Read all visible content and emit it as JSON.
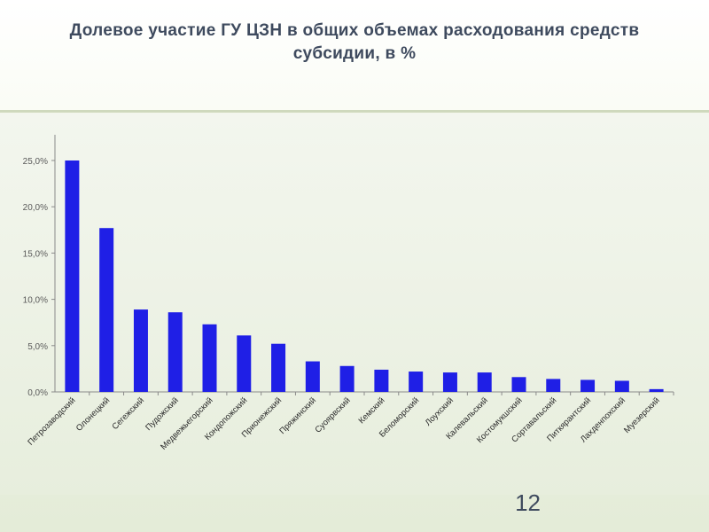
{
  "slide": {
    "title": "Долевое участие ГУ ЦЗН в общих объемах расходования средств субсидии, в %",
    "page_number": "12"
  },
  "chart_data": {
    "type": "bar",
    "title": "",
    "xlabel": "",
    "ylabel": "",
    "ylim": [
      0,
      25
    ],
    "ytick_labels": [
      "0,0%",
      "5,0%",
      "10,0%",
      "15,0%",
      "20,0%",
      "25,0%"
    ],
    "ytick_values": [
      0,
      5,
      10,
      15,
      20,
      25
    ],
    "grid": false,
    "bar_color": "#1f1fe6",
    "categories": [
      "Петрозаводский",
      "Олонецкий",
      "Сегежский",
      "Пудожский",
      "Медвежьегорский",
      "Кондопожский",
      "Прионежский",
      "Пряжинский",
      "Суоярвский",
      "Кемский",
      "Беломорский",
      "Лоухский",
      "Калевальский",
      "Костомукшский",
      "Сортавальский",
      "Питкярантский",
      "Лахденпохский",
      "Муезерский"
    ],
    "values": [
      25.0,
      17.7,
      8.9,
      8.6,
      7.3,
      6.1,
      5.2,
      3.3,
      2.8,
      2.4,
      2.2,
      2.1,
      2.1,
      1.6,
      1.4,
      1.3,
      1.2,
      0.3
    ]
  }
}
